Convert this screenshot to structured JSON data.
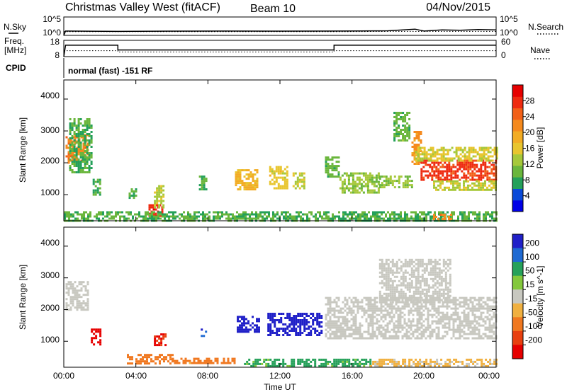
{
  "header": {
    "station": "Christmas Valley West (fitACF)",
    "beam": "Beam 10",
    "date": "04/Nov/2015"
  },
  "side_labels": {
    "nsky": "N.Sky",
    "nsearch": "N.Search",
    "freq": "Freq.",
    "freq_unit": "[MHz]",
    "nave": "Nave",
    "cpid": "CPID"
  },
  "cpid_text": "normal (fast) -151 RF",
  "noise_ticks_left": [
    "10^5",
    "10^0"
  ],
  "noise_ticks_right": [
    "10^5",
    "10^0"
  ],
  "freq_ticks": [
    "18",
    "8"
  ],
  "nave_ticks": [
    "60",
    "0"
  ],
  "range_ticks": [
    "4000",
    "3000",
    "2000",
    "1000"
  ],
  "time_ticks": [
    "00:00",
    "04:00",
    "08:00",
    "12:00",
    "16:00",
    "20:00",
    "00:00"
  ],
  "xlabel": "Time UT",
  "chart_data": [
    {
      "type": "line",
      "title": "N.Sky / N.Search",
      "x_unit": "hours UT",
      "xlim": [
        0,
        24
      ],
      "yscale": "log",
      "ylim": [
        1,
        100000
      ],
      "series": [
        {
          "name": "N.Sky",
          "style": "solid",
          "x": [
            0,
            0.1,
            0.2,
            3,
            6,
            9,
            12,
            15,
            18,
            19.5,
            20,
            21,
            22,
            23,
            24
          ],
          "values": [
            1,
            15,
            15,
            12,
            14,
            15,
            14,
            15,
            18,
            50,
            15,
            30,
            25,
            40,
            30
          ]
        },
        {
          "name": "N.Search",
          "style": "dotted",
          "x": [
            0,
            3,
            6,
            9,
            12,
            15,
            18,
            21,
            24
          ],
          "values": [
            10,
            10,
            10,
            10,
            10,
            10,
            12,
            12,
            12
          ]
        }
      ]
    },
    {
      "type": "line",
      "title": "Freq. / Nave",
      "x_unit": "hours UT",
      "xlim": [
        0,
        24
      ],
      "series": [
        {
          "name": "Freq. [MHz]",
          "style": "solid",
          "ylim": [
            8,
            18
          ],
          "x": [
            0,
            0.1,
            3,
            3,
            15,
            15,
            24
          ],
          "values": [
            8,
            15,
            15,
            12.1,
            12.1,
            15,
            15
          ]
        },
        {
          "name": "Nave",
          "style": "dotted",
          "ylim": [
            0,
            60
          ],
          "x": [
            0,
            3,
            3,
            15,
            15,
            24
          ],
          "values": [
            22,
            22,
            17,
            17,
            22,
            22
          ]
        }
      ]
    },
    {
      "type": "heatmap",
      "title": "Power",
      "ylabel": "Slant Range [km]",
      "xlabel": "Time UT",
      "xlim": [
        0,
        24
      ],
      "ylim": [
        180,
        4600
      ],
      "colorbar": {
        "label": "Power [dB]",
        "range": [
          0,
          32
        ],
        "ticks": [
          4,
          8,
          12,
          16,
          20,
          24,
          28
        ],
        "colors": [
          "#0000e6",
          "#0a4ad8",
          "#24a05a",
          "#6ab63c",
          "#a6c83a",
          "#e8c52e",
          "#f2ac24",
          "#f58a1e",
          "#f26018",
          "#ee2a10",
          "#e60000"
        ]
      },
      "regions": [
        {
          "t": [
            0.1,
            1.3
          ],
          "r": [
            2000,
            2900
          ],
          "v": 22
        },
        {
          "t": [
            0.3,
            1.5
          ],
          "r": [
            1700,
            3400
          ],
          "v": 9
        },
        {
          "t": [
            1.6,
            2.0
          ],
          "r": [
            1000,
            1500
          ],
          "v": 8
        },
        {
          "t": [
            3.6,
            4.0
          ],
          "r": [
            900,
            1200
          ],
          "v": 9
        },
        {
          "t": [
            4.7,
            5.5
          ],
          "r": [
            300,
            700
          ],
          "v": 28
        },
        {
          "t": [
            5.0,
            5.5
          ],
          "r": [
            600,
            1300
          ],
          "v": 14
        },
        {
          "t": [
            7.5,
            7.9
          ],
          "r": [
            1200,
            1600
          ],
          "v": 9
        },
        {
          "t": [
            9.5,
            10.7
          ],
          "r": [
            1150,
            1800
          ],
          "v": 18
        },
        {
          "t": [
            11.4,
            12.4
          ],
          "r": [
            1200,
            1900
          ],
          "v": 16
        },
        {
          "t": [
            12.7,
            13.3
          ],
          "r": [
            1200,
            1700
          ],
          "v": 14
        },
        {
          "t": [
            14.5,
            15.3
          ],
          "r": [
            1550,
            2200
          ],
          "v": 10
        },
        {
          "t": [
            15.3,
            17.5
          ],
          "r": [
            1050,
            1700
          ],
          "v": 12
        },
        {
          "t": [
            17.5,
            19.3
          ],
          "r": [
            1250,
            1600
          ],
          "v": 12
        },
        {
          "t": [
            18.3,
            19.2
          ],
          "r": [
            2700,
            3600
          ],
          "v": 10
        },
        {
          "t": [
            19.3,
            19.8
          ],
          "r": [
            2000,
            3000
          ],
          "v": 21
        },
        {
          "t": [
            19.8,
            24.0
          ],
          "r": [
            1450,
            2100
          ],
          "v": 27
        },
        {
          "t": [
            19.5,
            24.0
          ],
          "r": [
            2100,
            2500
          ],
          "v": 15
        },
        {
          "t": [
            20.5,
            24.0
          ],
          "r": [
            1150,
            1450
          ],
          "v": 14
        },
        {
          "t": [
            0.0,
            24.0
          ],
          "r": [
            180,
            480
          ],
          "v": 9
        },
        {
          "t": [
            20.5,
            21.5
          ],
          "r": [
            250,
            400
          ],
          "v": 22
        }
      ]
    },
    {
      "type": "heatmap",
      "title": "Velocity",
      "ylabel": "Slant Range [km]",
      "xlabel": "Time UT",
      "xlim": [
        0,
        24
      ],
      "ylim": [
        180,
        4600
      ],
      "colorbar": {
        "label": "Velocity [m s^-1]",
        "ticks": [
          200,
          100,
          50,
          15,
          -15,
          -50,
          -100,
          -200
        ],
        "colors": [
          "#2020c8",
          "#1f6ad2",
          "#26a15a",
          "#84c83c",
          "#c8c8c0",
          "#f0b040",
          "#f07820",
          "#e84010",
          "#e60000"
        ]
      },
      "regions": [
        {
          "t": [
            0.1,
            1.3
          ],
          "r": [
            2000,
            2900
          ],
          "v": 0
        },
        {
          "t": [
            1.5,
            2.0
          ],
          "r": [
            900,
            1400
          ],
          "v": -200
        },
        {
          "t": [
            5.0,
            5.6
          ],
          "r": [
            900,
            1250
          ],
          "v": -150
        },
        {
          "t": [
            7.6,
            7.9
          ],
          "r": [
            1100,
            1400
          ],
          "v": 150
        },
        {
          "t": [
            9.6,
            10.8
          ],
          "r": [
            1300,
            1800
          ],
          "v": 200
        },
        {
          "t": [
            11.3,
            14.3
          ],
          "r": [
            1200,
            1900
          ],
          "v": 200
        },
        {
          "t": [
            14.5,
            24.0
          ],
          "r": [
            1100,
            2400
          ],
          "v": 0
        },
        {
          "t": [
            17.5,
            21.5
          ],
          "r": [
            2200,
            3600
          ],
          "v": 0
        },
        {
          "t": [
            3.5,
            6.0
          ],
          "r": [
            300,
            600
          ],
          "v": -80
        },
        {
          "t": [
            6.0,
            9.5
          ],
          "r": [
            280,
            480
          ],
          "v": -60
        },
        {
          "t": [
            10.0,
            17.0
          ],
          "r": [
            200,
            450
          ],
          "v": 40
        },
        {
          "t": [
            17.0,
            24.0
          ],
          "r": [
            200,
            450
          ],
          "v": -20
        }
      ]
    }
  ]
}
